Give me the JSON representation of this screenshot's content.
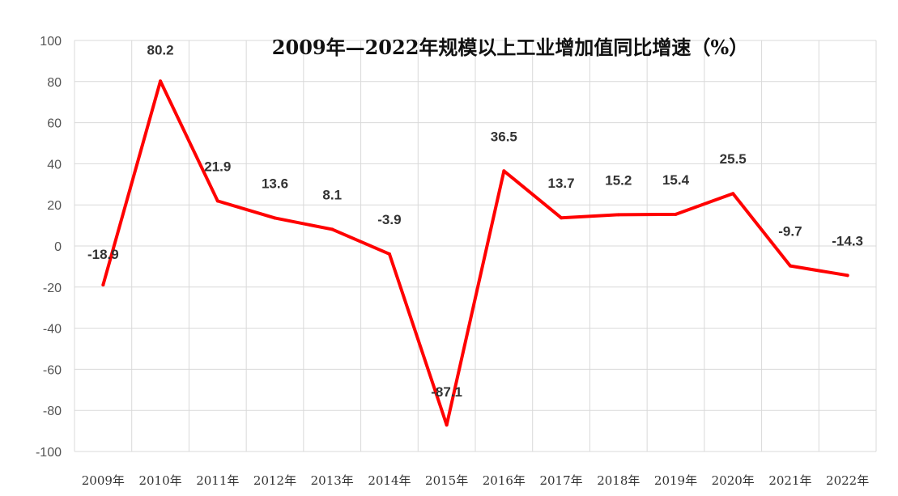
{
  "chart_data": {
    "type": "line",
    "title": "2009年—2022年规模以上工业增加值同比增速（%）",
    "categories": [
      "2009年",
      "2010年",
      "2011年",
      "2012年",
      "2013年",
      "2014年",
      "2015年",
      "2016年",
      "2017年",
      "2018年",
      "2019年",
      "2020年",
      "2021年",
      "2022年"
    ],
    "series": [
      {
        "values": [
          -18.9,
          80.2,
          21.9,
          13.6,
          8.1,
          -3.9,
          -87.1,
          36.5,
          13.7,
          15.2,
          15.4,
          25.5,
          -9.7,
          -14.3
        ],
        "color": "#ff0000"
      }
    ],
    "data_labels": [
      "-18.9",
      "80.2",
      "21.9",
      "13.6",
      "8.1",
      "-3.9",
      "-87.1",
      "36.5",
      "13.7",
      "15.2",
      "15.4",
      "25.5",
      "-9.7",
      "-14.3"
    ],
    "ylim": [
      -100,
      100
    ],
    "yticks": [
      "100",
      "80",
      "60",
      "40",
      "20",
      "0",
      "-20",
      "-40",
      "-60",
      "-80",
      "-100"
    ],
    "grid": true,
    "legend": "none"
  }
}
